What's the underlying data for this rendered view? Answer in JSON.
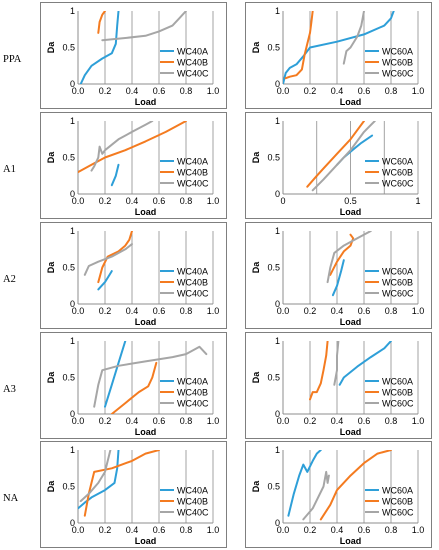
{
  "colors": {
    "A": "#2e9fd8",
    "B": "#f47b20",
    "C": "#a6a6a6",
    "frame": "#7f7f7f",
    "grid": "#8c8c8c"
  },
  "row_labels": [
    "PPA",
    "A1",
    "A2",
    "A3",
    "NA"
  ],
  "chart_data": [
    {
      "type": "line",
      "row": "PPA",
      "column": "WC40",
      "xlabel": "Load",
      "ylabel": "Da",
      "xlim": [
        0,
        1
      ],
      "ylim": [
        0,
        1
      ],
      "xticks": [
        "0.0",
        "0.2",
        "0.4",
        "0.6",
        "0.8",
        "1.0"
      ],
      "yticks": [
        "0",
        "0.5",
        "1"
      ],
      "series": [
        {
          "name": "WC40A",
          "points": [
            [
              0.02,
              0.0
            ],
            [
              0.05,
              0.12
            ],
            [
              0.1,
              0.25
            ],
            [
              0.18,
              0.35
            ],
            [
              0.25,
              0.42
            ],
            [
              0.28,
              0.55
            ],
            [
              0.29,
              0.8
            ],
            [
              0.3,
              1.0
            ]
          ]
        },
        {
          "name": "WC40B",
          "points": [
            [
              0.15,
              0.7
            ],
            [
              0.16,
              0.85
            ],
            [
              0.18,
              0.95
            ],
            [
              0.2,
              1.0
            ]
          ]
        },
        {
          "name": "WC40C",
          "points": [
            [
              0.18,
              0.6
            ],
            [
              0.35,
              0.63
            ],
            [
              0.5,
              0.66
            ],
            [
              0.6,
              0.72
            ],
            [
              0.7,
              0.8
            ],
            [
              0.75,
              0.9
            ],
            [
              0.8,
              1.0
            ]
          ]
        }
      ]
    },
    {
      "type": "line",
      "row": "PPA",
      "column": "WC60",
      "xlabel": "Load",
      "ylabel": "Da",
      "xlim": [
        0,
        1
      ],
      "ylim": [
        0,
        1
      ],
      "xticks": [
        "0.0",
        "0.2",
        "0.4",
        "0.6",
        "0.8",
        "1.0"
      ],
      "yticks": [
        "0",
        "0.5",
        "1"
      ],
      "series": [
        {
          "name": "WC60A",
          "points": [
            [
              0.0,
              0.0
            ],
            [
              0.02,
              0.15
            ],
            [
              0.05,
              0.22
            ],
            [
              0.1,
              0.27
            ],
            [
              0.15,
              0.38
            ],
            [
              0.2,
              0.5
            ],
            [
              0.4,
              0.58
            ],
            [
              0.6,
              0.68
            ],
            [
              0.75,
              0.8
            ],
            [
              0.8,
              0.9
            ],
            [
              0.82,
              1.0
            ]
          ]
        },
        {
          "name": "WC60B",
          "points": [
            [
              0.02,
              0.08
            ],
            [
              0.05,
              0.1
            ],
            [
              0.1,
              0.12
            ],
            [
              0.14,
              0.2
            ],
            [
              0.16,
              0.4
            ],
            [
              0.18,
              0.55
            ],
            [
              0.2,
              0.7
            ],
            [
              0.21,
              0.85
            ],
            [
              0.22,
              1.0
            ]
          ]
        },
        {
          "name": "WC60C",
          "points": [
            [
              0.45,
              0.28
            ],
            [
              0.47,
              0.45
            ],
            [
              0.5,
              0.5
            ],
            [
              0.55,
              0.65
            ],
            [
              0.58,
              0.8
            ],
            [
              0.6,
              1.0
            ]
          ]
        }
      ]
    },
    {
      "type": "line",
      "row": "A1",
      "column": "WC40",
      "xlabel": "Load",
      "ylabel": "Da",
      "xlim": [
        0,
        1
      ],
      "ylim": [
        0,
        1
      ],
      "xticks": [
        "0.0",
        "0.2",
        "0.4",
        "0.6",
        "0.8",
        "1.0"
      ],
      "yticks": [
        "0",
        "0.5",
        "1"
      ],
      "series": [
        {
          "name": "WC40A",
          "points": [
            [
              0.25,
              0.12
            ],
            [
              0.28,
              0.25
            ],
            [
              0.3,
              0.4
            ]
          ]
        },
        {
          "name": "WC40B",
          "points": [
            [
              0.0,
              0.3
            ],
            [
              0.1,
              0.4
            ],
            [
              0.2,
              0.5
            ],
            [
              0.35,
              0.6
            ],
            [
              0.5,
              0.72
            ],
            [
              0.65,
              0.85
            ],
            [
              0.8,
              1.0
            ]
          ]
        },
        {
          "name": "WC40C",
          "points": [
            [
              0.1,
              0.32
            ],
            [
              0.12,
              0.38
            ],
            [
              0.15,
              0.5
            ],
            [
              0.16,
              0.65
            ],
            [
              0.18,
              0.55
            ],
            [
              0.2,
              0.6
            ],
            [
              0.3,
              0.75
            ],
            [
              0.4,
              0.85
            ],
            [
              0.5,
              0.95
            ],
            [
              0.55,
              1.0
            ]
          ]
        }
      ]
    },
    {
      "type": "line",
      "row": "A1",
      "column": "WC60",
      "xlabel": "Load",
      "ylabel": "Da",
      "xlim": [
        0,
        1
      ],
      "ylim": [
        0,
        1
      ],
      "xticks": [
        "0",
        "",
        "0.5",
        "",
        "1"
      ],
      "yticks": [
        "0",
        "0.5",
        "1"
      ],
      "series": [
        {
          "name": "WC60A",
          "points": [
            [
              0.4,
              0.4
            ],
            [
              0.45,
              0.5
            ],
            [
              0.5,
              0.58
            ],
            [
              0.58,
              0.7
            ],
            [
              0.66,
              0.8
            ]
          ]
        },
        {
          "name": "WC60B",
          "points": [
            [
              0.18,
              0.1
            ],
            [
              0.25,
              0.25
            ],
            [
              0.3,
              0.35
            ],
            [
              0.4,
              0.55
            ],
            [
              0.5,
              0.75
            ],
            [
              0.6,
              1.0
            ]
          ]
        },
        {
          "name": "WC60C",
          "points": [
            [
              0.22,
              0.05
            ],
            [
              0.3,
              0.2
            ],
            [
              0.4,
              0.4
            ],
            [
              0.5,
              0.6
            ],
            [
              0.6,
              0.85
            ],
            [
              0.68,
              1.0
            ]
          ]
        }
      ]
    },
    {
      "type": "line",
      "row": "A2",
      "column": "WC40",
      "xlabel": "Load",
      "ylabel": "Da",
      "xlim": [
        0,
        1
      ],
      "ylim": [
        0,
        1
      ],
      "xticks": [
        "0.0",
        "0.2",
        "0.4",
        "0.6",
        "0.8",
        "1.0"
      ],
      "yticks": [
        "0",
        "0.5",
        "1"
      ],
      "series": [
        {
          "name": "WC40A",
          "points": [
            [
              0.15,
              0.2
            ],
            [
              0.2,
              0.3
            ],
            [
              0.25,
              0.45
            ]
          ]
        },
        {
          "name": "WC40B",
          "points": [
            [
              0.15,
              0.3
            ],
            [
              0.18,
              0.5
            ],
            [
              0.22,
              0.65
            ],
            [
              0.3,
              0.72
            ],
            [
              0.35,
              0.8
            ],
            [
              0.38,
              0.88
            ],
            [
              0.4,
              1.0
            ]
          ]
        },
        {
          "name": "WC40C",
          "points": [
            [
              0.05,
              0.4
            ],
            [
              0.08,
              0.52
            ],
            [
              0.15,
              0.58
            ],
            [
              0.25,
              0.65
            ],
            [
              0.35,
              0.75
            ],
            [
              0.4,
              0.82
            ]
          ]
        }
      ]
    },
    {
      "type": "line",
      "row": "A2",
      "column": "WC60",
      "xlabel": "Load",
      "ylabel": "Da",
      "xlim": [
        0,
        1
      ],
      "ylim": [
        0,
        1
      ],
      "xticks": [
        "0.0",
        "0.2",
        "0.4",
        "0.6",
        "0.8",
        "1.0"
      ],
      "yticks": [
        "0",
        "0.5",
        "1"
      ],
      "series": [
        {
          "name": "WC60A",
          "points": [
            [
              0.37,
              0.12
            ],
            [
              0.4,
              0.25
            ],
            [
              0.43,
              0.45
            ],
            [
              0.45,
              0.6
            ]
          ]
        },
        {
          "name": "WC60B",
          "points": [
            [
              0.35,
              0.4
            ],
            [
              0.4,
              0.58
            ],
            [
              0.45,
              0.72
            ],
            [
              0.5,
              0.8
            ],
            [
              0.52,
              0.9
            ],
            [
              0.5,
              0.95
            ]
          ]
        },
        {
          "name": "WC60C",
          "points": [
            [
              0.33,
              0.3
            ],
            [
              0.35,
              0.5
            ],
            [
              0.38,
              0.7
            ],
            [
              0.45,
              0.8
            ],
            [
              0.55,
              0.9
            ],
            [
              0.65,
              1.0
            ]
          ]
        }
      ]
    },
    {
      "type": "line",
      "row": "A3",
      "column": "WC40",
      "xlabel": "Load",
      "ylabel": "Da",
      "xlim": [
        0,
        1
      ],
      "ylim": [
        0,
        1
      ],
      "xticks": [
        "0.0",
        "0.2",
        "0.4",
        "0.6",
        "0.8",
        "1.0"
      ],
      "yticks": [
        "0",
        "0.5",
        "1"
      ],
      "series": [
        {
          "name": "WC40A",
          "points": [
            [
              0.2,
              0.1
            ],
            [
              0.25,
              0.4
            ],
            [
              0.3,
              0.7
            ],
            [
              0.35,
              1.0
            ]
          ]
        },
        {
          "name": "WC40B",
          "points": [
            [
              0.25,
              0.0
            ],
            [
              0.35,
              0.15
            ],
            [
              0.45,
              0.3
            ],
            [
              0.52,
              0.38
            ],
            [
              0.55,
              0.5
            ],
            [
              0.58,
              0.7
            ]
          ]
        },
        {
          "name": "WC40C",
          "points": [
            [
              0.12,
              0.1
            ],
            [
              0.15,
              0.4
            ],
            [
              0.18,
              0.6
            ],
            [
              0.3,
              0.66
            ],
            [
              0.5,
              0.72
            ],
            [
              0.6,
              0.75
            ],
            [
              0.7,
              0.78
            ],
            [
              0.8,
              0.82
            ],
            [
              0.9,
              0.92
            ],
            [
              0.95,
              0.82
            ]
          ]
        }
      ]
    },
    {
      "type": "line",
      "row": "A3",
      "column": "WC60",
      "xlabel": "Load",
      "ylabel": "Da",
      "xlim": [
        0,
        1
      ],
      "ylim": [
        0,
        1
      ],
      "xticks": [
        "0.0",
        "0.2",
        "0.4",
        "0.6",
        "0.8",
        "1.0"
      ],
      "yticks": [
        "0",
        "0.5",
        "1"
      ],
      "series": [
        {
          "name": "WC60A",
          "points": [
            [
              0.42,
              0.4
            ],
            [
              0.45,
              0.5
            ],
            [
              0.55,
              0.65
            ],
            [
              0.65,
              0.78
            ],
            [
              0.75,
              0.9
            ],
            [
              0.8,
              1.0
            ]
          ]
        },
        {
          "name": "WC60B",
          "points": [
            [
              0.2,
              0.2
            ],
            [
              0.22,
              0.3
            ],
            [
              0.25,
              0.3
            ],
            [
              0.28,
              0.42
            ],
            [
              0.3,
              0.6
            ],
            [
              0.32,
              0.8
            ],
            [
              0.33,
              1.0
            ]
          ]
        },
        {
          "name": "WC60C",
          "points": [
            [
              0.38,
              0.4
            ],
            [
              0.4,
              0.6
            ],
            [
              0.4,
              0.8
            ],
            [
              0.41,
              1.0
            ]
          ]
        }
      ]
    },
    {
      "type": "line",
      "row": "NA",
      "column": "WC40",
      "xlabel": "Load",
      "ylabel": "Da",
      "xlim": [
        0,
        1
      ],
      "ylim": [
        0,
        1
      ],
      "xticks": [
        "0.0",
        "0.2",
        "0.4",
        "0.6",
        "0.8",
        "1.0"
      ],
      "yticks": [
        "0",
        "0.5",
        "1"
      ],
      "series": [
        {
          "name": "WC40A",
          "points": [
            [
              0.0,
              0.2
            ],
            [
              0.05,
              0.28
            ],
            [
              0.1,
              0.35
            ],
            [
              0.2,
              0.45
            ],
            [
              0.27,
              0.55
            ],
            [
              0.29,
              0.75
            ],
            [
              0.3,
              1.0
            ]
          ]
        },
        {
          "name": "WC40B",
          "points": [
            [
              0.05,
              0.1
            ],
            [
              0.08,
              0.4
            ],
            [
              0.12,
              0.7
            ],
            [
              0.25,
              0.75
            ],
            [
              0.4,
              0.85
            ],
            [
              0.5,
              0.95
            ],
            [
              0.6,
              1.0
            ]
          ]
        },
        {
          "name": "WC40C",
          "points": [
            [
              0.02,
              0.3
            ],
            [
              0.08,
              0.4
            ],
            [
              0.15,
              0.55
            ],
            [
              0.2,
              0.7
            ],
            [
              0.22,
              0.85
            ],
            [
              0.24,
              1.0
            ]
          ]
        }
      ]
    },
    {
      "type": "line",
      "row": "NA",
      "column": "WC60",
      "xlabel": "Load",
      "ylabel": "Da",
      "xlim": [
        0,
        1
      ],
      "ylim": [
        0,
        1
      ],
      "xticks": [
        "0.0",
        "0.2",
        "0.4",
        "0.6",
        "0.8",
        "1.0"
      ],
      "yticks": [
        "0",
        "0.5",
        "1"
      ],
      "series": [
        {
          "name": "WC60A",
          "points": [
            [
              0.04,
              0.1
            ],
            [
              0.08,
              0.4
            ],
            [
              0.12,
              0.65
            ],
            [
              0.15,
              0.8
            ],
            [
              0.18,
              0.7
            ],
            [
              0.22,
              0.85
            ],
            [
              0.25,
              0.95
            ],
            [
              0.28,
              1.0
            ]
          ]
        },
        {
          "name": "WC60B",
          "points": [
            [
              0.28,
              0.05
            ],
            [
              0.35,
              0.25
            ],
            [
              0.4,
              0.45
            ],
            [
              0.5,
              0.65
            ],
            [
              0.6,
              0.82
            ],
            [
              0.7,
              0.95
            ],
            [
              0.8,
              1.0
            ]
          ]
        },
        {
          "name": "WC60C",
          "points": [
            [
              0.15,
              0.05
            ],
            [
              0.22,
              0.2
            ],
            [
              0.26,
              0.35
            ],
            [
              0.3,
              0.5
            ],
            [
              0.32,
              0.7
            ],
            [
              0.33,
              0.55
            ],
            [
              0.34,
              0.65
            ]
          ]
        }
      ]
    }
  ]
}
